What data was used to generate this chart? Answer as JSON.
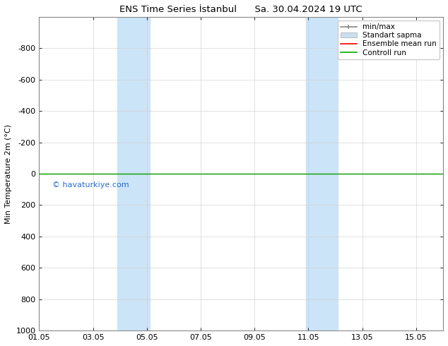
{
  "title": "ENS Time Series İstanbul      Sa. 30.04.2024 19 UTC",
  "ylabel": "Min Temperature 2m (°C)",
  "ylim_top": -1000,
  "ylim_bottom": 1000,
  "yticks": [
    -800,
    -600,
    -400,
    -200,
    0,
    200,
    400,
    600,
    800,
    1000
  ],
  "xtick_labels": [
    "01.05",
    "03.05",
    "05.05",
    "07.05",
    "09.05",
    "11.05",
    "13.05",
    "15.05"
  ],
  "xtick_positions": [
    0,
    2,
    4,
    6,
    8,
    10,
    12,
    14
  ],
  "xlim": [
    0,
    15
  ],
  "background_color": "#ffffff",
  "plot_bg_color": "#ffffff",
  "shade_regions": [
    {
      "x_start": 2.9,
      "x_end": 4.1,
      "color": "#cce4f7"
    },
    {
      "x_start": 9.9,
      "x_end": 11.1,
      "color": "#cce4f7"
    }
  ],
  "control_run_y": 0,
  "control_run_color": "#00aa00",
  "ensemble_mean_color": "#ff0000",
  "minmax_color": "#888888",
  "standart_color": "#c8dff0",
  "watermark": "© havaturkiye.com",
  "watermark_color": "#0055cc",
  "legend_labels": [
    "min/max",
    "Standart sapma",
    "Ensemble mean run",
    "Controll run"
  ],
  "legend_colors": [
    "#888888",
    "#c8dff0",
    "#ff0000",
    "#00aa00"
  ]
}
